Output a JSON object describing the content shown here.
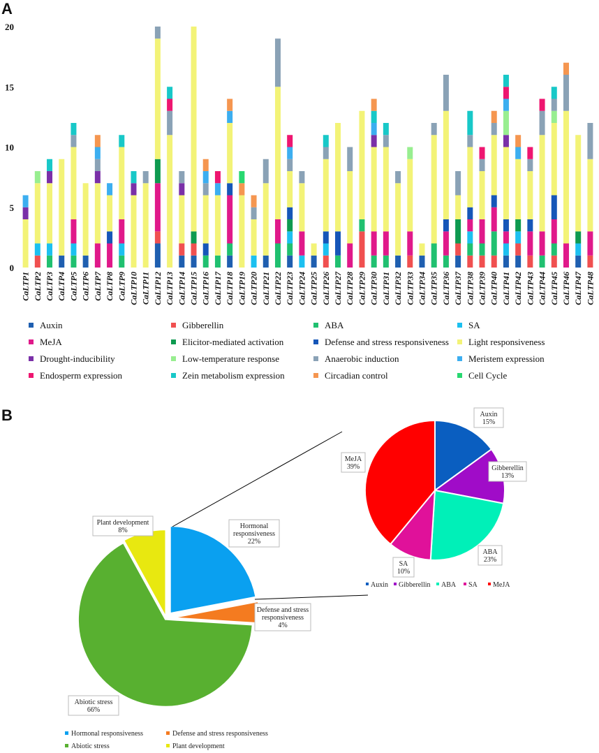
{
  "panels": {
    "a": "A",
    "b": "B"
  },
  "chart_data": [
    {
      "type": "bar",
      "stacked": true,
      "title": "",
      "xlabel": "",
      "ylabel": "",
      "ylim": [
        0,
        20
      ],
      "yticks": [
        0,
        5,
        10,
        15,
        20
      ],
      "categories": [
        "CaLTP1",
        "CaLTP2",
        "CaLTP3",
        "CaLTP4",
        "CaLTP5",
        "CaLTP6",
        "CaLTP7",
        "CaLTP8",
        "CaLTP9",
        "CaLTP10",
        "CaLTP11",
        "CaLTP12",
        "CaLTP13",
        "CaLTP14",
        "CaLTP15",
        "CaLTP16",
        "CaLTP17",
        "CaLTP18",
        "CaLTP19",
        "CaLTP20",
        "CaLTP21",
        "CaLTP22",
        "CaLTP23",
        "CaLTP24",
        "CaLTP25",
        "CaLTP26",
        "CaLTP27",
        "CaLTP28",
        "CaLTP29",
        "CaLTP30",
        "CaLTP31",
        "CaLTP32",
        "CaLTP33",
        "CaLTP34",
        "CaLTP35",
        "CaLTP36",
        "CaLTP37",
        "CaLTP38",
        "CaLTP39",
        "CaLTP40",
        "CaLTP41",
        "CaLTP42",
        "CaLTP43",
        "CaLTP44",
        "CaLTP45",
        "CaLTP46",
        "CaLTP47",
        "CaLTP48"
      ],
      "series": [
        {
          "name": "Auxin",
          "color": "#1f5fb0",
          "values": [
            0,
            0,
            0,
            1,
            0,
            1,
            0,
            0,
            0,
            0,
            0,
            2,
            0,
            1,
            1,
            0,
            0,
            1,
            0,
            0,
            1,
            0,
            1,
            0,
            1,
            0,
            0,
            0,
            0,
            0,
            0,
            1,
            0,
            1,
            0,
            0,
            1,
            0,
            0,
            0,
            1,
            1,
            0,
            0,
            0,
            0,
            1,
            0
          ]
        },
        {
          "name": "Gibberellin",
          "color": "#f05050",
          "values": [
            0,
            1,
            0,
            0,
            0,
            0,
            0,
            0,
            0,
            0,
            0,
            1,
            0,
            1,
            1,
            0,
            0,
            0,
            0,
            0,
            0,
            0,
            0,
            0,
            0,
            1,
            0,
            0,
            3,
            0,
            0,
            0,
            1,
            0,
            0,
            0,
            1,
            1,
            1,
            1,
            0,
            1,
            1,
            0,
            1,
            0,
            0,
            1
          ]
        },
        {
          "name": "ABA",
          "color": "#20c070",
          "values": [
            0,
            0,
            1,
            0,
            1,
            0,
            0,
            0,
            1,
            0,
            0,
            0,
            0,
            0,
            0,
            1,
            1,
            1,
            0,
            0,
            0,
            2,
            1,
            0,
            0,
            0,
            1,
            0,
            1,
            1,
            1,
            0,
            0,
            0,
            2,
            1,
            0,
            1,
            1,
            2,
            0,
            0,
            0,
            1,
            1,
            0,
            0,
            0
          ]
        },
        {
          "name": "SA",
          "color": "#1cc0f0",
          "values": [
            0,
            1,
            1,
            0,
            1,
            0,
            0,
            0,
            1,
            0,
            0,
            0,
            0,
            0,
            0,
            0,
            0,
            0,
            0,
            1,
            0,
            0,
            1,
            1,
            0,
            1,
            0,
            0,
            0,
            0,
            0,
            0,
            0,
            0,
            0,
            0,
            0,
            1,
            0,
            0,
            1,
            1,
            0,
            0,
            0,
            0,
            1,
            0
          ]
        },
        {
          "name": "MeJA",
          "color": "#e0198a",
          "values": [
            0,
            0,
            0,
            0,
            2,
            0,
            2,
            2,
            2,
            0,
            0,
            4,
            0,
            0,
            0,
            0,
            0,
            4,
            0,
            0,
            0,
            2,
            0,
            2,
            0,
            0,
            0,
            2,
            0,
            2,
            2,
            0,
            2,
            0,
            0,
            2,
            0,
            1,
            2,
            2,
            1,
            0,
            2,
            2,
            2,
            2,
            0,
            2
          ]
        },
        {
          "name": "Elicitor-mediated activation",
          "color": "#0e9a50",
          "values": [
            0,
            0,
            0,
            0,
            0,
            0,
            0,
            0,
            0,
            0,
            0,
            2,
            0,
            0,
            1,
            0,
            0,
            0,
            0,
            0,
            0,
            0,
            1,
            0,
            0,
            0,
            0,
            0,
            0,
            0,
            0,
            0,
            0,
            0,
            0,
            0,
            2,
            0,
            0,
            0,
            0,
            1,
            0,
            0,
            0,
            0,
            1,
            0
          ]
        },
        {
          "name": "Defense and stress responsiveness",
          "color": "#1656b8",
          "values": [
            0,
            0,
            0,
            0,
            0,
            0,
            0,
            1,
            0,
            0,
            0,
            0,
            0,
            0,
            0,
            1,
            0,
            1,
            0,
            0,
            0,
            0,
            1,
            0,
            0,
            1,
            2,
            0,
            0,
            0,
            0,
            0,
            0,
            0,
            0,
            1,
            0,
            1,
            0,
            1,
            1,
            0,
            1,
            0,
            2,
            0,
            0,
            0
          ]
        },
        {
          "name": "Light responsiveness",
          "color": "#f3f377",
          "values": [
            4,
            5,
            5,
            8,
            6,
            6,
            5,
            3,
            6,
            6,
            7,
            10,
            11,
            4,
            17,
            4,
            5,
            5,
            6,
            3,
            6,
            11,
            3,
            4,
            1,
            6,
            9,
            6,
            9,
            7,
            7,
            6,
            6,
            1,
            9,
            9,
            2,
            5,
            4,
            5,
            6,
            5,
            4,
            8,
            6,
            11,
            8,
            6
          ]
        },
        {
          "name": "Drought-inducibility",
          "color": "#7a30a8",
          "values": [
            1,
            0,
            1,
            0,
            0,
            0,
            1,
            0,
            0,
            1,
            0,
            0,
            0,
            1,
            0,
            0,
            0,
            0,
            0,
            0,
            0,
            0,
            0,
            0,
            0,
            0,
            0,
            0,
            0,
            1,
            0,
            0,
            0,
            0,
            0,
            0,
            0,
            0,
            0,
            0,
            1,
            0,
            0,
            0,
            0,
            0,
            0,
            0
          ]
        },
        {
          "name": "Low-temperature response",
          "color": "#98ee90",
          "values": [
            0,
            1,
            0,
            0,
            0,
            0,
            0,
            0,
            0,
            0,
            0,
            0,
            0,
            0,
            0,
            0,
            0,
            0,
            0,
            0,
            0,
            0,
            0,
            0,
            0,
            0,
            0,
            0,
            0,
            0,
            0,
            0,
            1,
            0,
            0,
            0,
            0,
            0,
            0,
            0,
            2,
            0,
            0,
            0,
            1,
            0,
            0,
            0
          ]
        },
        {
          "name": "Anaerobic induction",
          "color": "#8aa2b6",
          "values": [
            0,
            0,
            0,
            0,
            1,
            0,
            1,
            0,
            0,
            0,
            1,
            1,
            2,
            1,
            0,
            1,
            0,
            0,
            0,
            1,
            2,
            4,
            1,
            1,
            0,
            1,
            0,
            2,
            0,
            0,
            1,
            1,
            0,
            0,
            1,
            3,
            2,
            1,
            1,
            1,
            0,
            0,
            1,
            2,
            1,
            3,
            0,
            3
          ]
        },
        {
          "name": "Meristem expression",
          "color": "#3caef0",
          "values": [
            1,
            0,
            0,
            0,
            0,
            0,
            1,
            1,
            0,
            0,
            0,
            0,
            0,
            0,
            0,
            1,
            1,
            1,
            0,
            0,
            0,
            0,
            1,
            0,
            0,
            0,
            0,
            0,
            0,
            1,
            0,
            0,
            0,
            0,
            0,
            0,
            0,
            0,
            0,
            0,
            1,
            1,
            0,
            0,
            0,
            0,
            0,
            0
          ]
        },
        {
          "name": "Endosperm expression",
          "color": "#ee1670",
          "values": [
            0,
            0,
            0,
            0,
            0,
            0,
            0,
            0,
            0,
            0,
            0,
            0,
            1,
            0,
            0,
            0,
            1,
            0,
            0,
            0,
            0,
            0,
            1,
            0,
            0,
            0,
            0,
            0,
            0,
            0,
            0,
            0,
            0,
            0,
            0,
            0,
            0,
            0,
            1,
            0,
            1,
            0,
            1,
            1,
            0,
            0,
            0,
            0
          ]
        },
        {
          "name": "Zein metabolism expression",
          "color": "#18c8c8",
          "values": [
            0,
            0,
            1,
            0,
            1,
            0,
            0,
            0,
            1,
            1,
            0,
            0,
            1,
            0,
            0,
            0,
            0,
            0,
            0,
            0,
            0,
            0,
            0,
            0,
            0,
            1,
            0,
            0,
            0,
            1,
            1,
            0,
            0,
            0,
            0,
            0,
            0,
            2,
            0,
            0,
            1,
            0,
            0,
            0,
            1,
            0,
            0,
            0
          ]
        },
        {
          "name": "Circadian control",
          "color": "#f59650",
          "values": [
            0,
            0,
            0,
            0,
            0,
            0,
            1,
            0,
            0,
            0,
            0,
            0,
            0,
            0,
            0,
            1,
            0,
            1,
            1,
            1,
            0,
            0,
            0,
            0,
            0,
            0,
            0,
            0,
            0,
            1,
            0,
            0,
            0,
            0,
            0,
            0,
            0,
            0,
            0,
            1,
            0,
            1,
            0,
            0,
            0,
            1,
            0,
            0
          ]
        },
        {
          "name": "Cell Cycle",
          "color": "#28d870",
          "values": [
            0,
            0,
            0,
            0,
            0,
            0,
            0,
            0,
            0,
            0,
            0,
            0,
            0,
            0,
            0,
            0,
            0,
            0,
            1,
            0,
            0,
            0,
            0,
            0,
            0,
            0,
            0,
            0,
            0,
            0,
            0,
            0,
            0,
            0,
            0,
            0,
            0,
            0,
            0,
            0,
            0,
            0,
            0,
            0,
            0,
            0,
            0,
            0
          ]
        }
      ]
    },
    {
      "type": "pie",
      "title": "",
      "labels": [
        "Hormonal responsiveness",
        "Defense and stress responsiveness",
        "Abiotic stress",
        "Plant development"
      ],
      "values": [
        22,
        4,
        66,
        8
      ],
      "display": [
        "22%",
        "4%",
        "66%",
        "8%"
      ],
      "colors": [
        "#0aa0f0",
        "#f47b20",
        "#58b030",
        "#e8e810"
      ],
      "legend": [
        "Hormonal responsiveness",
        "Defense and stress responsiveness",
        "Abiotic stress",
        "Plant development"
      ],
      "legend_position": "bottom"
    },
    {
      "type": "pie",
      "title": "",
      "labels": [
        "Auxin",
        "Gibberellin",
        "ABA",
        "SA",
        "MeJA"
      ],
      "values": [
        15,
        13,
        23,
        10,
        39
      ],
      "display": [
        "15%",
        "13%",
        "23%",
        "10%",
        "39%"
      ],
      "colors": [
        "#0a5ec0",
        "#a00cc8",
        "#00f0b8",
        "#e0119a",
        "#ff0000"
      ],
      "legend": [
        "Auxin",
        "Gibberellin",
        "ABA",
        "SA",
        "MeJA"
      ],
      "legend_position": "bottom"
    }
  ]
}
